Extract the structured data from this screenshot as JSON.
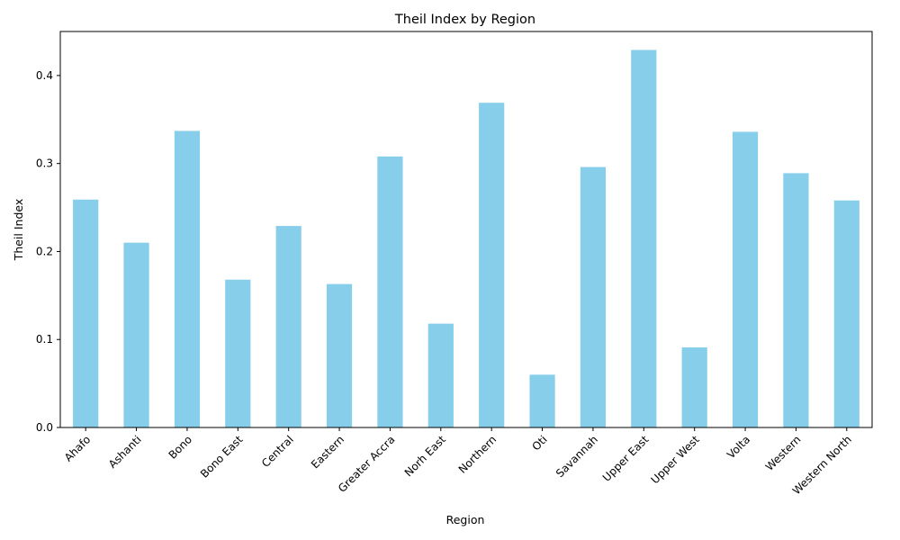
{
  "chart_data": {
    "type": "bar",
    "title": "Theil Index by Region",
    "xlabel": "Region",
    "ylabel": "Theil Index",
    "categories": [
      "Ahafo",
      "Ashanti",
      "Bono",
      "Bono East",
      "Central",
      "Eastern",
      "Greater Accra",
      "Norh East",
      "Northern",
      "Oti",
      "Savannah",
      "Upper East",
      "Upper West",
      "Volta",
      "Western",
      "Western North"
    ],
    "values": [
      0.259,
      0.21,
      0.337,
      0.168,
      0.229,
      0.163,
      0.308,
      0.118,
      0.369,
      0.06,
      0.296,
      0.429,
      0.091,
      0.336,
      0.289,
      0.258
    ],
    "ylim": [
      0,
      0.45
    ],
    "yticks": [
      0.0,
      0.1,
      0.2,
      0.3,
      0.4
    ],
    "ytick_labels": [
      "0.0",
      "0.1",
      "0.2",
      "0.3",
      "0.4"
    ],
    "bar_color": "#87ceeb",
    "grid": false,
    "legend": "none"
  }
}
